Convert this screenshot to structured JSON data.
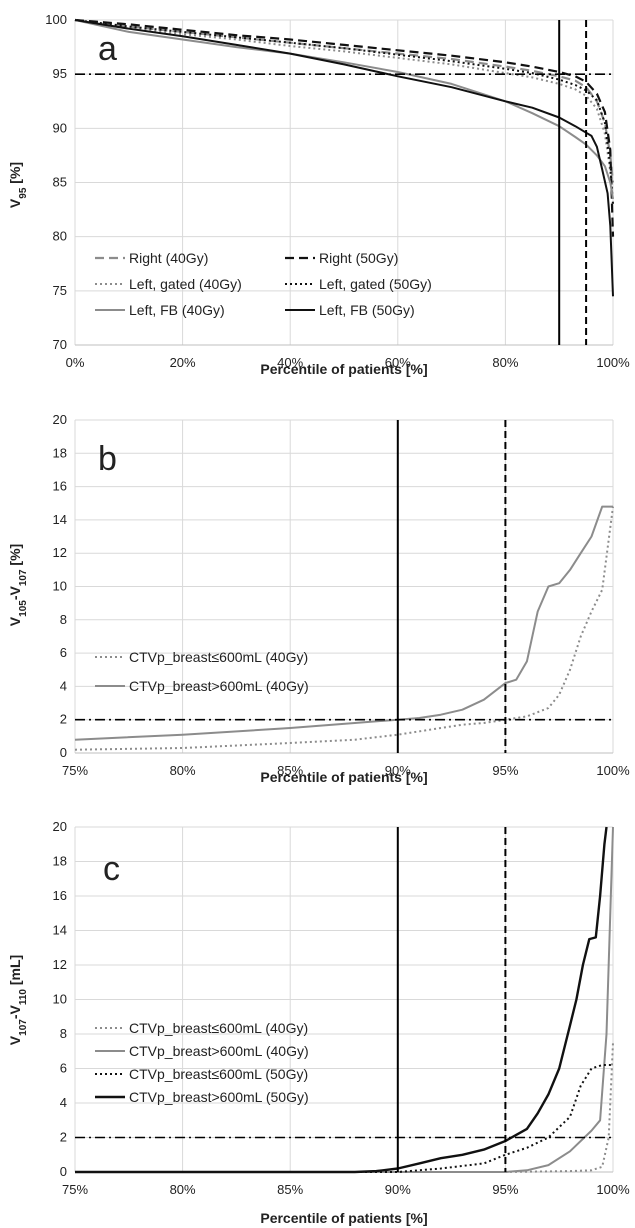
{
  "chart_data": [
    {
      "type": "line",
      "panel_label": "a",
      "xlabel": "Percentile of patients [%]",
      "ylabel_main": "V",
      "ylabel_sub": "95",
      "ylabel_suffix": " [%]",
      "xlim": [
        0,
        100
      ],
      "ylim": [
        70,
        100
      ],
      "x_ticks": [
        "0%",
        "20%",
        "40%",
        "60%",
        "80%",
        "100%"
      ],
      "y_ticks": [
        "70",
        "75",
        "80",
        "85",
        "90",
        "95",
        "100"
      ],
      "reference_lines": [
        {
          "axis": "x",
          "value": 90,
          "style": "solid"
        },
        {
          "axis": "x",
          "value": 95,
          "style": "dashed"
        },
        {
          "axis": "y",
          "value": 95,
          "style": "dashdot"
        }
      ],
      "legend_columns": 2,
      "legend_position": "bottom-left",
      "series": [
        {
          "name": "Right (40Gy)",
          "color": "#8c8c8c",
          "dash": "9,5",
          "width": 2.2,
          "points": [
            [
              0,
              100
            ],
            [
              10,
              99.4
            ],
            [
              20,
              98.9
            ],
            [
              30,
              98.4
            ],
            [
              40,
              97.9
            ],
            [
              50,
              97.4
            ],
            [
              60,
              96.9
            ],
            [
              70,
              96.4
            ],
            [
              80,
              95.7
            ],
            [
              85,
              95.3
            ],
            [
              90,
              94.8
            ],
            [
              93,
              94.4
            ],
            [
              95,
              93.8
            ],
            [
              97,
              92.5
            ],
            [
              98.5,
              90.5
            ],
            [
              99.5,
              87.5
            ],
            [
              100,
              85
            ]
          ]
        },
        {
          "name": "Right (50Gy)",
          "color": "#111111",
          "dash": "9,5",
          "width": 2.2,
          "points": [
            [
              0,
              100
            ],
            [
              10,
              99.6
            ],
            [
              20,
              99.1
            ],
            [
              30,
              98.6
            ],
            [
              40,
              98.2
            ],
            [
              50,
              97.7
            ],
            [
              60,
              97.2
            ],
            [
              70,
              96.7
            ],
            [
              80,
              96.1
            ],
            [
              85,
              95.7
            ],
            [
              90,
              95.2
            ],
            [
              93,
              94.8
            ],
            [
              95,
              94.3
            ],
            [
              97,
              93.2
            ],
            [
              98.5,
              91.5
            ],
            [
              99.5,
              88
            ],
            [
              100,
              80
            ]
          ]
        },
        {
          "name": "Left, gated (40Gy)",
          "color": "#8c8c8c",
          "dash": "2,3",
          "width": 2,
          "points": [
            [
              0,
              100
            ],
            [
              10,
              99.3
            ],
            [
              20,
              98.7
            ],
            [
              30,
              98.2
            ],
            [
              40,
              97.6
            ],
            [
              50,
              97.1
            ],
            [
              60,
              96.5
            ],
            [
              70,
              95.9
            ],
            [
              80,
              95.1
            ],
            [
              85,
              94.7
            ],
            [
              90,
              94.1
            ],
            [
              93,
              93.6
            ],
            [
              95,
              93
            ],
            [
              97,
              91.8
            ],
            [
              98.5,
              89.5
            ],
            [
              99.5,
              86
            ],
            [
              100,
              83
            ]
          ]
        },
        {
          "name": "Left, gated (50Gy)",
          "color": "#111111",
          "dash": "2,3",
          "width": 2,
          "points": [
            [
              0,
              100
            ],
            [
              10,
              99.4
            ],
            [
              20,
              98.9
            ],
            [
              30,
              98.4
            ],
            [
              40,
              97.9
            ],
            [
              50,
              97.4
            ],
            [
              60,
              96.8
            ],
            [
              70,
              96.2
            ],
            [
              80,
              95.5
            ],
            [
              85,
              95.1
            ],
            [
              90,
              94.5
            ],
            [
              93,
              94
            ],
            [
              95,
              93.5
            ],
            [
              97,
              92.6
            ],
            [
              98.5,
              90.5
            ],
            [
              99.5,
              86.5
            ],
            [
              100,
              83
            ]
          ]
        },
        {
          "name": "Left, FB (40Gy)",
          "color": "#8c8c8c",
          "dash": "",
          "width": 2,
          "points": [
            [
              0,
              100
            ],
            [
              10,
              98.9
            ],
            [
              20,
              98.2
            ],
            [
              30,
              97.5
            ],
            [
              40,
              96.9
            ],
            [
              50,
              96.1
            ],
            [
              60,
              95.2
            ],
            [
              70,
              94.1
            ],
            [
              80,
              92.5
            ],
            [
              85,
              91.4
            ],
            [
              90,
              90.2
            ],
            [
              93,
              89.2
            ],
            [
              95,
              88.5
            ],
            [
              97,
              87.5
            ],
            [
              98.5,
              86.5
            ],
            [
              99.5,
              85
            ],
            [
              100,
              83.5
            ]
          ]
        },
        {
          "name": "Left, FB (50Gy)",
          "color": "#111111",
          "dash": "",
          "width": 2,
          "points": [
            [
              0,
              100
            ],
            [
              10,
              99.2
            ],
            [
              20,
              98.5
            ],
            [
              30,
              97.7
            ],
            [
              40,
              96.9
            ],
            [
              50,
              95.9
            ],
            [
              60,
              94.8
            ],
            [
              70,
              93.8
            ],
            [
              80,
              92.5
            ],
            [
              85,
              91.9
            ],
            [
              90,
              91
            ],
            [
              93,
              90.2
            ],
            [
              95,
              89.6
            ],
            [
              96,
              89.3
            ],
            [
              97,
              88.3
            ],
            [
              98,
              86.2
            ],
            [
              99,
              84
            ],
            [
              99.5,
              81
            ],
            [
              100,
              74.5
            ]
          ]
        }
      ]
    },
    {
      "type": "line",
      "panel_label": "b",
      "xlabel": "Percentile of patients [%]",
      "ylabel_main": "V",
      "ylabel_sub": "105",
      "ylabel_mid": "-V",
      "ylabel_sub2": "107",
      "ylabel_suffix": " [%]",
      "xlim": [
        75,
        100
      ],
      "ylim": [
        0,
        20
      ],
      "x_ticks": [
        "75%",
        "80%",
        "85%",
        "90%",
        "95%",
        "100%"
      ],
      "y_ticks": [
        "0",
        "2",
        "4",
        "6",
        "8",
        "10",
        "12",
        "14",
        "16",
        "18",
        "20"
      ],
      "reference_lines": [
        {
          "axis": "x",
          "value": 90,
          "style": "solid"
        },
        {
          "axis": "x",
          "value": 95,
          "style": "dashed"
        },
        {
          "axis": "y",
          "value": 2,
          "style": "dashdot"
        }
      ],
      "legend_columns": 1,
      "legend_position": "left",
      "series": [
        {
          "name": "CTVp_breast≤600mL (40Gy)",
          "color": "#8c8c8c",
          "dash": "2,3",
          "width": 2,
          "points": [
            [
              75,
              0.2
            ],
            [
              80,
              0.3
            ],
            [
              85,
              0.6
            ],
            [
              88,
              0.8
            ],
            [
              90,
              1.1
            ],
            [
              92,
              1.5
            ],
            [
              93,
              1.7
            ],
            [
              94,
              1.8
            ],
            [
              95,
              2
            ],
            [
              95.5,
              2.1
            ],
            [
              96,
              2.2
            ],
            [
              97,
              2.7
            ],
            [
              97.5,
              3.5
            ],
            [
              98,
              5
            ],
            [
              98.5,
              7
            ],
            [
              99,
              8.5
            ],
            [
              99.5,
              9.8
            ],
            [
              100,
              14.8
            ]
          ]
        },
        {
          "name": "CTVp_breast>600mL (40Gy)",
          "color": "#8c8c8c",
          "dash": "",
          "width": 2,
          "points": [
            [
              75,
              0.8
            ],
            [
              80,
              1.1
            ],
            [
              85,
              1.5
            ],
            [
              88,
              1.8
            ],
            [
              90,
              2
            ],
            [
              91,
              2.1
            ],
            [
              92,
              2.3
            ],
            [
              93,
              2.6
            ],
            [
              94,
              3.2
            ],
            [
              95,
              4.2
            ],
            [
              95.5,
              4.4
            ],
            [
              96,
              5.5
            ],
            [
              96.5,
              8.5
            ],
            [
              97,
              10
            ],
            [
              97.5,
              10.2
            ],
            [
              98,
              11
            ],
            [
              98.5,
              12
            ],
            [
              99,
              13
            ],
            [
              99.5,
              14.8
            ],
            [
              100,
              14.8
            ]
          ]
        }
      ]
    },
    {
      "type": "line",
      "panel_label": "c",
      "xlabel": "Percentile of patients [%]",
      "ylabel_main": "V",
      "ylabel_sub": "107",
      "ylabel_mid": "-V",
      "ylabel_sub2": "110",
      "ylabel_suffix": " [mL]",
      "xlim": [
        75,
        100
      ],
      "ylim": [
        0,
        20
      ],
      "x_ticks": [
        "75%",
        "80%",
        "85%",
        "90%",
        "95%",
        "100%"
      ],
      "y_ticks": [
        "0",
        "2",
        "4",
        "6",
        "8",
        "10",
        "12",
        "14",
        "16",
        "18",
        "20"
      ],
      "reference_lines": [
        {
          "axis": "x",
          "value": 90,
          "style": "solid"
        },
        {
          "axis": "x",
          "value": 95,
          "style": "dashed"
        },
        {
          "axis": "y",
          "value": 2,
          "style": "dashdot"
        }
      ],
      "legend_columns": 1,
      "legend_position": "left",
      "series": [
        {
          "name": "CTVp_breast≤600mL (40Gy)",
          "color": "#8c8c8c",
          "dash": "2,3",
          "width": 2,
          "points": [
            [
              75,
              0
            ],
            [
              95,
              0
            ],
            [
              98,
              0.05
            ],
            [
              99,
              0.1
            ],
            [
              99.5,
              0.3
            ],
            [
              99.8,
              2
            ],
            [
              100,
              7.5
            ]
          ]
        },
        {
          "name": "CTVp_breast>600mL (40Gy)",
          "color": "#8c8c8c",
          "dash": "",
          "width": 2,
          "points": [
            [
              75,
              0
            ],
            [
              95,
              0
            ],
            [
              96,
              0.1
            ],
            [
              97,
              0.4
            ],
            [
              98,
              1.2
            ],
            [
              99,
              2.4
            ],
            [
              99.4,
              3
            ],
            [
              99.7,
              8
            ],
            [
              100,
              20
            ]
          ]
        },
        {
          "name": "CTVp_breast≤600mL (50Gy)",
          "color": "#111111",
          "dash": "2,3",
          "width": 2,
          "points": [
            [
              75,
              0
            ],
            [
              90,
              0
            ],
            [
              92,
              0.2
            ],
            [
              94,
              0.5
            ],
            [
              95,
              1
            ],
            [
              96,
              1.4
            ],
            [
              97,
              2
            ],
            [
              98,
              3.2
            ],
            [
              98.5,
              5
            ],
            [
              99,
              6
            ],
            [
              99.5,
              6.2
            ],
            [
              100,
              6.2
            ]
          ]
        },
        {
          "name": "CTVp_breast>600mL (50Gy)",
          "color": "#111111",
          "dash": "",
          "width": 2.4,
          "points": [
            [
              75,
              0
            ],
            [
              88,
              0
            ],
            [
              89,
              0.05
            ],
            [
              90,
              0.2
            ],
            [
              91,
              0.5
            ],
            [
              92,
              0.8
            ],
            [
              93,
              1
            ],
            [
              94,
              1.3
            ],
            [
              95,
              1.8
            ],
            [
              96,
              2.5
            ],
            [
              96.5,
              3.4
            ],
            [
              97,
              4.5
            ],
            [
              97.5,
              6
            ],
            [
              98,
              8.5
            ],
            [
              98.3,
              10
            ],
            [
              98.6,
              12
            ],
            [
              98.9,
              13.5
            ],
            [
              99.2,
              13.6
            ],
            [
              99.4,
              16
            ],
            [
              99.6,
              19
            ],
            [
              99.7,
              20
            ]
          ]
        }
      ]
    }
  ]
}
